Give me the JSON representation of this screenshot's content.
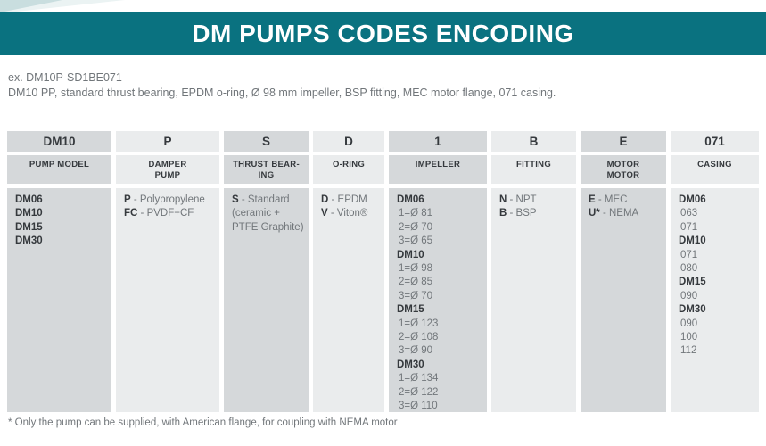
{
  "page": {
    "title": "DM PUMPS CODES ENCODING",
    "example_code": "ex. DM10P-SD1BE071",
    "example_description": "DM10 PP, standard thrust bearing, EPDM o-ring, Ø 98 mm impeller, BSP fitting, MEC motor flange, 071 casing.",
    "footnote": "* Only the pump can be supplied, with American flange, for coupling with NEMA motor"
  },
  "colors": {
    "teal": "#0a7280",
    "corner_teal": "#c9dedf",
    "corner_teal_faint": "#ebf3f3",
    "cell_dark": "#d5d8da",
    "cell_light": "#eaeced",
    "text_dark": "#35393d",
    "text_gray": "#71767a"
  },
  "table": {
    "columns": [
      {
        "code": "DM10",
        "label": "PUMP MODEL",
        "entries": [
          {
            "b": "DM06"
          },
          {
            "b": "DM10"
          },
          {
            "b": "DM15"
          },
          {
            "b": "DM30"
          }
        ]
      },
      {
        "code": "P",
        "label": "DAMPER\nPUMP",
        "entries": [
          {
            "b": "P",
            "t": " - Polypropylene"
          },
          {
            "b": "FC",
            "t": " - PVDF+CF"
          }
        ]
      },
      {
        "code": "S",
        "label": "THRUST BEAR-\nING",
        "entries": [
          {
            "b": "S",
            "t": " - Standard"
          },
          {
            "t": "(ceramic +"
          },
          {
            "t": "PTFE Graphite)"
          }
        ]
      },
      {
        "code": "D",
        "label": "O-RING",
        "entries": [
          {
            "b": "D",
            "t": " - EPDM"
          },
          {
            "b": "V",
            "t": " - Viton®"
          }
        ]
      },
      {
        "code": "1",
        "label": "IMPELLER",
        "entries": [
          {
            "b": "DM06"
          },
          {
            "t": "1=Ø 81",
            "indent": true
          },
          {
            "t": "2=Ø 70",
            "indent": true
          },
          {
            "t": "3=Ø 65",
            "indent": true
          },
          {
            "b": "DM10"
          },
          {
            "t": "1=Ø 98",
            "indent": true
          },
          {
            "t": "2=Ø 85",
            "indent": true
          },
          {
            "t": "3=Ø 70",
            "indent": true
          },
          {
            "b": "DM15"
          },
          {
            "t": "1=Ø 123",
            "indent": true
          },
          {
            "t": "2=Ø 108",
            "indent": true
          },
          {
            "t": "3=Ø 90",
            "indent": true
          },
          {
            "b": "DM30"
          },
          {
            "t": "1=Ø 134",
            "indent": true
          },
          {
            "t": "2=Ø 122",
            "indent": true
          },
          {
            "t": "3=Ø 110",
            "indent": true
          }
        ]
      },
      {
        "code": "B",
        "label": "FITTING",
        "entries": [
          {
            "b": "N",
            "t": " - NPT"
          },
          {
            "b": "B",
            "t": " - BSP"
          }
        ]
      },
      {
        "code": "E",
        "label": "MOTOR\nMOTOR",
        "entries": [
          {
            "b": "E",
            "t": " - MEC"
          },
          {
            "b": "U*",
            "t": " - NEMA"
          }
        ]
      },
      {
        "code": "071",
        "label": "CASING",
        "entries": [
          {
            "b": "DM06"
          },
          {
            "t": "063",
            "indent": true
          },
          {
            "t": "071",
            "indent": true
          },
          {
            "b": "DM10"
          },
          {
            "t": "071",
            "indent": true
          },
          {
            "t": "080",
            "indent": true
          },
          {
            "b": "DM15"
          },
          {
            "t": "090",
            "indent": true
          },
          {
            "b": "DM30"
          },
          {
            "t": "090",
            "indent": true
          },
          {
            "t": "100",
            "indent": true
          },
          {
            "t": "112",
            "indent": true
          }
        ]
      }
    ]
  }
}
